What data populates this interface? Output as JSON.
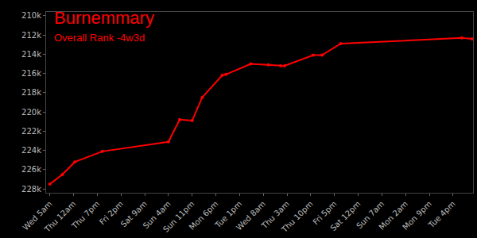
{
  "chart_data": {
    "type": "line",
    "title": "Burnemmary",
    "subtitle": "Overall Rank -4w3d",
    "color": "#ff0000",
    "marker": "circle",
    "line_style": "solid",
    "grid": false,
    "x": [
      0,
      10,
      20,
      42,
      95,
      104,
      114,
      122,
      138,
      141,
      161,
      175,
      185,
      188,
      211,
      218,
      233,
      330,
      338
    ],
    "values": [
      227500,
      226500,
      225200,
      224100,
      223100,
      220800,
      220900,
      218500,
      216200,
      216100,
      215000,
      215100,
      215200,
      215200,
      214100,
      214100,
      212900,
      212300,
      212400
    ],
    "xlim": [
      -3,
      339
    ],
    "xticks": [
      {
        "value": 0,
        "label": "Wed 5am"
      },
      {
        "value": 19,
        "label": "Thu 12am"
      },
      {
        "value": 38,
        "label": "Thu 7pm"
      },
      {
        "value": 57,
        "label": "Fri 2pm"
      },
      {
        "value": 76,
        "label": "Sat 9am"
      },
      {
        "value": 95,
        "label": "Sun 4am"
      },
      {
        "value": 114,
        "label": "Sun 11pm"
      },
      {
        "value": 133,
        "label": "Mon 6pm"
      },
      {
        "value": 152,
        "label": "Tue 1pm"
      },
      {
        "value": 171,
        "label": "Wed 8am"
      },
      {
        "value": 190,
        "label": "Thu 3am"
      },
      {
        "value": 209,
        "label": "Thu 10pm"
      },
      {
        "value": 228,
        "label": "Fri 5pm"
      },
      {
        "value": 247,
        "label": "Sat 12pm"
      },
      {
        "value": 266,
        "label": "Sun 7am"
      },
      {
        "value": 285,
        "label": "Mon 2am"
      },
      {
        "value": 304,
        "label": "Mon 9pm"
      },
      {
        "value": 323,
        "label": "Tue 4pm"
      }
    ],
    "ylim": [
      228400,
      209600
    ],
    "yticks": [
      {
        "value": 210000,
        "label": "210k"
      },
      {
        "value": 212000,
        "label": "212k"
      },
      {
        "value": 214000,
        "label": "214k"
      },
      {
        "value": 216000,
        "label": "216k"
      },
      {
        "value": 218000,
        "label": "218k"
      },
      {
        "value": 220000,
        "label": "220k"
      },
      {
        "value": 222000,
        "label": "222k"
      },
      {
        "value": 224000,
        "label": "224k"
      },
      {
        "value": 226000,
        "label": "226k"
      },
      {
        "value": 228000,
        "label": "228k"
      }
    ]
  }
}
